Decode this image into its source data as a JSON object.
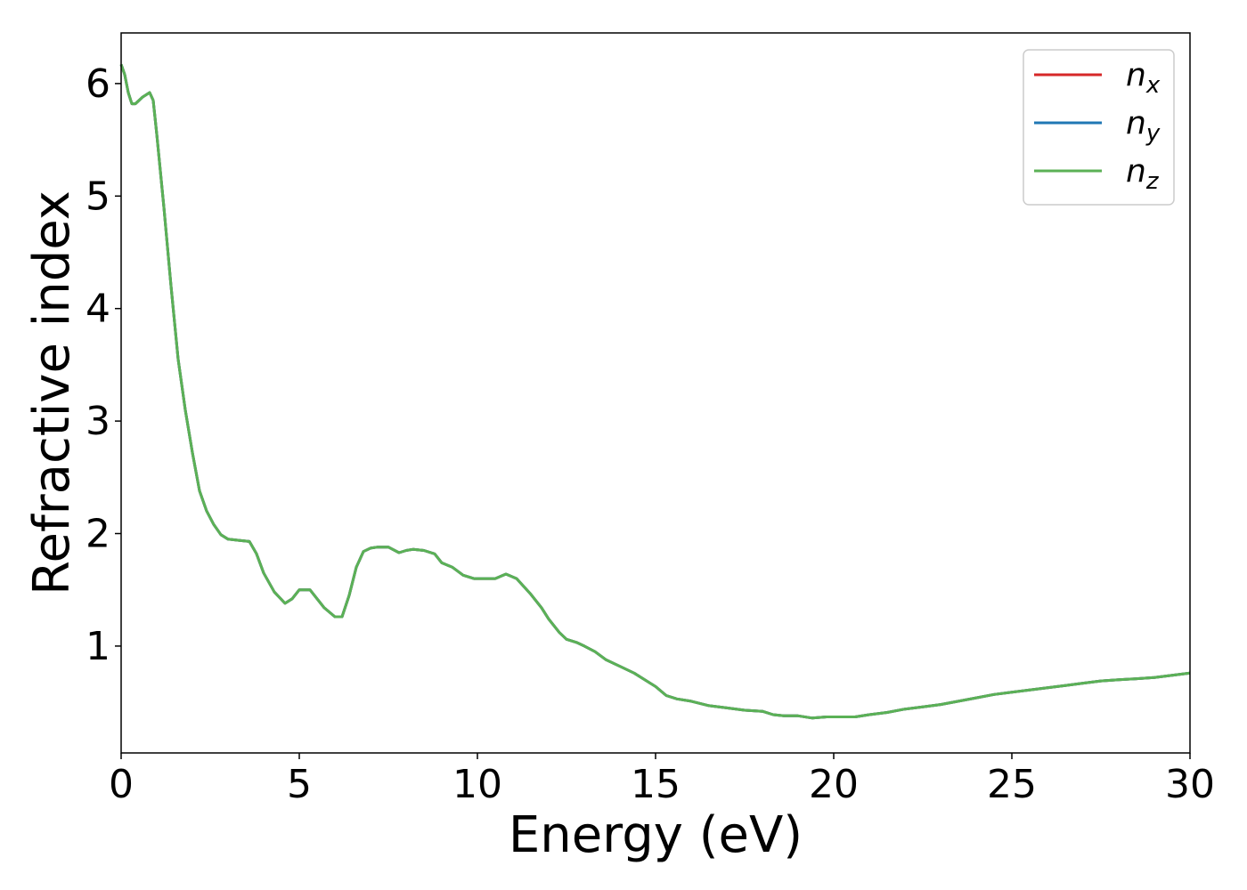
{
  "chart_data": {
    "type": "line",
    "title": "",
    "xlabel": "Energy (eV)",
    "ylabel": "Refractive index",
    "xlim": [
      0,
      30
    ],
    "ylim": [
      0.05,
      6.45
    ],
    "xticks": [
      0,
      5,
      10,
      15,
      20,
      25,
      30
    ],
    "yticks": [
      1,
      2,
      3,
      4,
      5,
      6
    ],
    "grid": false,
    "legend_position": "top-right",
    "x": [
      0,
      0.1,
      0.2,
      0.3,
      0.4,
      0.6,
      0.8,
      0.9,
      1.0,
      1.2,
      1.4,
      1.6,
      1.8,
      2.0,
      2.2,
      2.4,
      2.6,
      2.8,
      3.0,
      3.3,
      3.6,
      3.8,
      4.0,
      4.3,
      4.6,
      4.8,
      5.0,
      5.3,
      5.5,
      5.7,
      6.0,
      6.2,
      6.4,
      6.6,
      6.8,
      7.0,
      7.2,
      7.5,
      7.8,
      8.0,
      8.2,
      8.5,
      8.8,
      9.0,
      9.3,
      9.6,
      9.9,
      10.2,
      10.5,
      10.8,
      11.1,
      11.5,
      11.8,
      12.0,
      12.3,
      12.5,
      12.8,
      13.0,
      13.3,
      13.6,
      14.0,
      14.4,
      14.8,
      15.0,
      15.3,
      15.6,
      16.0,
      16.5,
      17.0,
      17.5,
      18.0,
      18.3,
      18.6,
      19.0,
      19.4,
      19.8,
      20.2,
      20.6,
      21.0,
      21.5,
      22.0,
      22.5,
      23.0,
      23.5,
      24.0,
      24.5,
      25.0,
      25.5,
      26.0,
      26.5,
      27.0,
      27.5,
      28.0,
      28.5,
      29.0,
      29.5,
      30.0
    ],
    "series": [
      {
        "name": "n_x",
        "color": "#d62728",
        "values": [
          6.17,
          6.08,
          5.92,
          5.82,
          5.82,
          5.88,
          5.92,
          5.85,
          5.55,
          4.9,
          4.2,
          3.55,
          3.1,
          2.72,
          2.38,
          2.2,
          2.08,
          1.99,
          1.95,
          1.94,
          1.93,
          1.82,
          1.65,
          1.48,
          1.38,
          1.42,
          1.5,
          1.5,
          1.42,
          1.34,
          1.26,
          1.26,
          1.45,
          1.7,
          1.84,
          1.87,
          1.88,
          1.88,
          1.83,
          1.85,
          1.86,
          1.85,
          1.82,
          1.74,
          1.7,
          1.63,
          1.6,
          1.6,
          1.6,
          1.64,
          1.6,
          1.46,
          1.34,
          1.24,
          1.12,
          1.06,
          1.03,
          1.0,
          0.95,
          0.88,
          0.82,
          0.76,
          0.68,
          0.64,
          0.56,
          0.53,
          0.51,
          0.47,
          0.45,
          0.43,
          0.42,
          0.39,
          0.38,
          0.38,
          0.36,
          0.37,
          0.37,
          0.37,
          0.39,
          0.41,
          0.44,
          0.46,
          0.48,
          0.51,
          0.54,
          0.57,
          0.59,
          0.61,
          0.63,
          0.65,
          0.67,
          0.69,
          0.7,
          0.71,
          0.72,
          0.74,
          0.76
        ]
      },
      {
        "name": "n_y",
        "color": "#1f77b4",
        "values": [
          6.17,
          6.08,
          5.92,
          5.82,
          5.82,
          5.88,
          5.92,
          5.85,
          5.55,
          4.9,
          4.2,
          3.55,
          3.1,
          2.72,
          2.38,
          2.2,
          2.08,
          1.99,
          1.95,
          1.94,
          1.93,
          1.82,
          1.65,
          1.48,
          1.38,
          1.42,
          1.5,
          1.5,
          1.42,
          1.34,
          1.26,
          1.26,
          1.45,
          1.7,
          1.84,
          1.87,
          1.88,
          1.88,
          1.83,
          1.85,
          1.86,
          1.85,
          1.82,
          1.74,
          1.7,
          1.63,
          1.6,
          1.6,
          1.6,
          1.64,
          1.6,
          1.46,
          1.34,
          1.24,
          1.12,
          1.06,
          1.03,
          1.0,
          0.95,
          0.88,
          0.82,
          0.76,
          0.68,
          0.64,
          0.56,
          0.53,
          0.51,
          0.47,
          0.45,
          0.43,
          0.42,
          0.39,
          0.38,
          0.38,
          0.36,
          0.37,
          0.37,
          0.37,
          0.39,
          0.41,
          0.44,
          0.46,
          0.48,
          0.51,
          0.54,
          0.57,
          0.59,
          0.61,
          0.63,
          0.65,
          0.67,
          0.69,
          0.7,
          0.71,
          0.72,
          0.74,
          0.76
        ]
      },
      {
        "name": "n_z",
        "color": "#5bb156",
        "values": [
          6.17,
          6.08,
          5.92,
          5.82,
          5.82,
          5.88,
          5.92,
          5.85,
          5.55,
          4.9,
          4.2,
          3.55,
          3.1,
          2.72,
          2.38,
          2.2,
          2.08,
          1.99,
          1.95,
          1.94,
          1.93,
          1.82,
          1.65,
          1.48,
          1.38,
          1.42,
          1.5,
          1.5,
          1.42,
          1.34,
          1.26,
          1.26,
          1.45,
          1.7,
          1.84,
          1.87,
          1.88,
          1.88,
          1.83,
          1.85,
          1.86,
          1.85,
          1.82,
          1.74,
          1.7,
          1.63,
          1.6,
          1.6,
          1.6,
          1.64,
          1.6,
          1.46,
          1.34,
          1.24,
          1.12,
          1.06,
          1.03,
          1.0,
          0.95,
          0.88,
          0.82,
          0.76,
          0.68,
          0.64,
          0.56,
          0.53,
          0.51,
          0.47,
          0.45,
          0.43,
          0.42,
          0.39,
          0.38,
          0.38,
          0.36,
          0.37,
          0.37,
          0.37,
          0.39,
          0.41,
          0.44,
          0.46,
          0.48,
          0.51,
          0.54,
          0.57,
          0.59,
          0.61,
          0.63,
          0.65,
          0.67,
          0.69,
          0.7,
          0.71,
          0.72,
          0.74,
          0.76
        ]
      }
    ],
    "legend": [
      {
        "base": "n",
        "sub": "x",
        "color": "#d62728"
      },
      {
        "base": "n",
        "sub": "y",
        "color": "#1f77b4"
      },
      {
        "base": "n",
        "sub": "z",
        "color": "#5bb156"
      }
    ]
  }
}
